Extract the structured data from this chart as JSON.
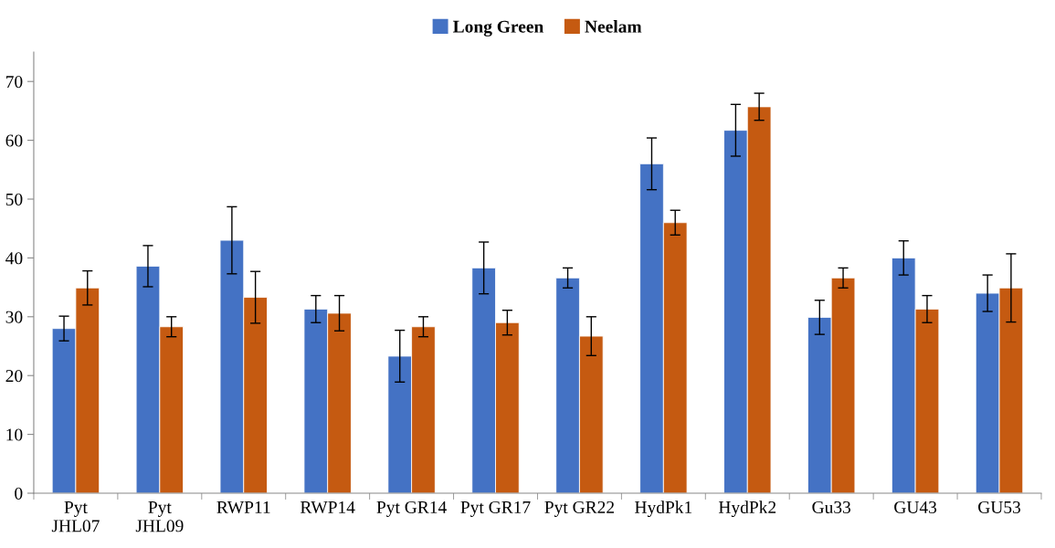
{
  "chart_data": {
    "type": "bar",
    "categories": [
      "Pyt\nJHL07",
      "Pyt\nJHL09",
      "RWP11",
      "RWP14",
      "Pyt GR14",
      "Pyt GR17",
      "Pyt GR22",
      "HydPk1",
      "HydPk2",
      "Gu33",
      "GU43",
      "GU53"
    ],
    "series": [
      {
        "name": "Long Green",
        "color": "#4472c4",
        "values": [
          28.0,
          38.6,
          43.0,
          31.3,
          23.3,
          38.3,
          36.6,
          56.0,
          61.7,
          29.9,
          40.0,
          34.0
        ],
        "errors": [
          2.1,
          3.5,
          5.7,
          2.3,
          4.4,
          4.4,
          1.7,
          4.4,
          4.4,
          2.9,
          2.9,
          3.1
        ]
      },
      {
        "name": "Neelam",
        "color": "#c55a11",
        "values": [
          34.9,
          28.3,
          33.3,
          30.6,
          28.3,
          29.0,
          26.7,
          46.0,
          65.7,
          36.6,
          31.3,
          34.9
        ],
        "errors": [
          2.9,
          1.7,
          4.4,
          3.0,
          1.7,
          2.1,
          3.3,
          2.1,
          2.3,
          1.7,
          2.3,
          5.8
        ]
      }
    ],
    "ylim": [
      0,
      75
    ],
    "yticks": [
      0,
      10,
      20,
      30,
      40,
      50,
      60,
      70
    ],
    "grid": false,
    "legend": "top"
  }
}
